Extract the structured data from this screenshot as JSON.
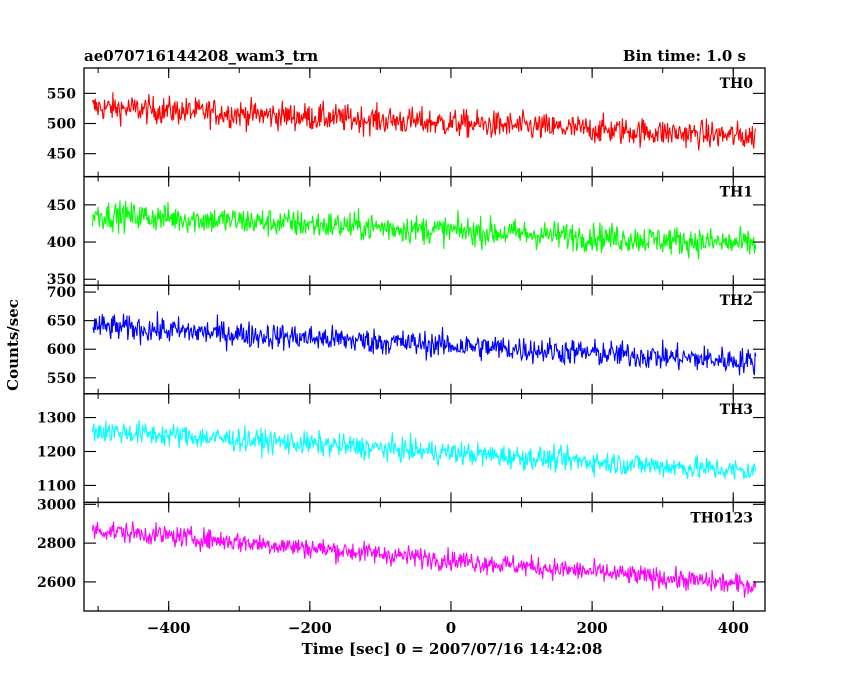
{
  "header": {
    "left_title": "ae070716144208_wam3_trn",
    "right_title": "Bin time: 1.0 s"
  },
  "axes": {
    "xlabel": "Time [sec] 0 = 2007/07/16 14:42:08",
    "ylabel": "Counts/sec"
  },
  "chart_data": {
    "type": "line",
    "x_range": [
      -508,
      432
    ],
    "x_limits": [
      -520,
      445
    ],
    "x_ticks": [
      -400,
      -200,
      0,
      200,
      400
    ],
    "x_tick_labels": [
      "−400",
      "−200",
      "0",
      "200",
      "400"
    ],
    "bin_time_s": 1.0,
    "panels": [
      {
        "name": "TH0",
        "color": "#ff0000",
        "ylim": [
          412,
          592
        ],
        "yticks": [
          450,
          500,
          550
        ],
        "ytick_labels": [
          "450",
          "500",
          "550"
        ],
        "trend_start": 527,
        "trend_end": 478,
        "noise_amplitude": 30
      },
      {
        "name": "TH1",
        "color": "#00ff00",
        "ylim": [
          342,
          488
        ],
        "yticks": [
          350,
          400,
          450
        ],
        "ytick_labels": [
          "350",
          "400",
          "450"
        ],
        "trend_start": 437,
        "trend_end": 397,
        "noise_amplitude": 25
      },
      {
        "name": "TH2",
        "color": "#0000ff",
        "ylim": [
          522,
          712
        ],
        "yticks": [
          550,
          600,
          650,
          700
        ],
        "ytick_labels": [
          "550",
          "600",
          "650",
          "700"
        ],
        "trend_start": 640,
        "trend_end": 578,
        "noise_amplitude": 30
      },
      {
        "name": "TH3",
        "color": "#00ffff",
        "ylim": [
          1050,
          1370
        ],
        "yticks": [
          1100,
          1200,
          1300
        ],
        "ytick_labels": [
          "1100",
          "1200",
          "1300"
        ],
        "trend_start": 1262,
        "trend_end": 1140,
        "noise_amplitude": 45
      },
      {
        "name": "TH0123",
        "color": "#ff00ff",
        "ylim": [
          2450,
          3010
        ],
        "yticks": [
          2600,
          2800,
          3000
        ],
        "ytick_labels": [
          "2600",
          "2800",
          "3000"
        ],
        "trend_start": 2870,
        "trend_end": 2580,
        "noise_amplitude": 70
      }
    ]
  }
}
